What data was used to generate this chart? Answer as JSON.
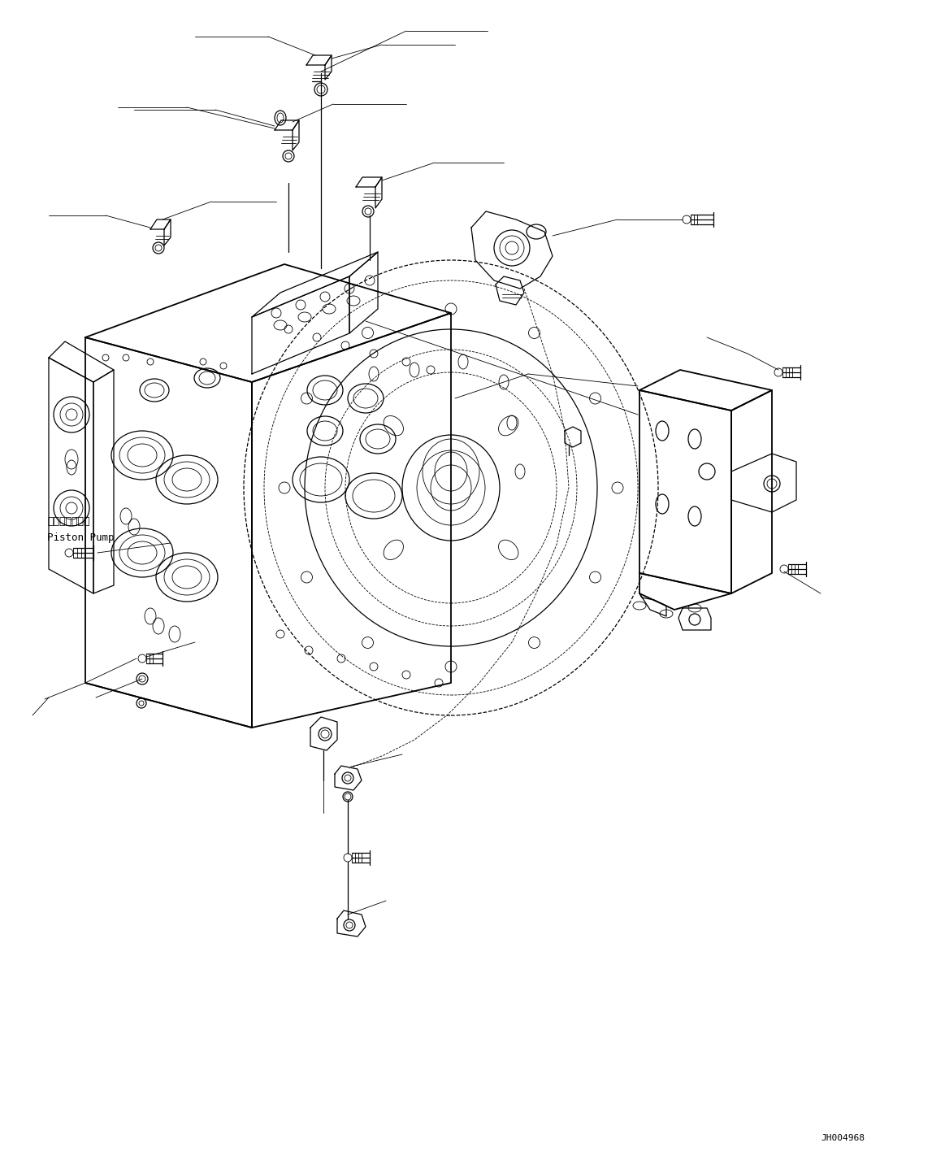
{
  "figure_width": 11.63,
  "figure_height": 14.22,
  "dpi": 100,
  "background_color": "#ffffff",
  "line_color": "#000000",
  "lw_thin": 0.6,
  "lw_med": 0.9,
  "lw_thick": 1.3,
  "label_text_1": "ピストンポンプ",
  "label_text_2": "Piston Pump",
  "watermark_text": "JH004968"
}
